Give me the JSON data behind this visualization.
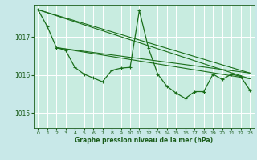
{
  "bg_color": "#c8e8e8",
  "plot_bg_color": "#c8ece0",
  "grid_color": "#ffffff",
  "line_color": "#1a6e1a",
  "text_color": "#1a5c1a",
  "xlabel": "Graphe pression niveau de la mer (hPa)",
  "ylim": [
    1014.6,
    1017.85
  ],
  "yticks": [
    1015,
    1016,
    1017
  ],
  "xticks": [
    0,
    1,
    2,
    3,
    4,
    5,
    6,
    7,
    8,
    9,
    10,
    11,
    12,
    13,
    14,
    15,
    16,
    17,
    18,
    19,
    20,
    21,
    22,
    23
  ],
  "data_series": [
    1017.72,
    1017.28,
    1016.72,
    1016.65,
    1016.2,
    1016.02,
    1015.92,
    1015.82,
    1016.12,
    1016.18,
    1016.2,
    1017.7,
    1016.7,
    1016.02,
    1015.7,
    1015.52,
    1015.38,
    1015.56,
    1015.56,
    1016.02,
    1015.88,
    1016.02,
    1015.96,
    1015.6
  ],
  "trend_lines": [
    {
      "x0": 0,
      "y0": 1017.72,
      "x1": 23,
      "y1": 1016.05
    },
    {
      "x0": 0,
      "y0": 1017.72,
      "x1": 23,
      "y1": 1015.9
    },
    {
      "x0": 2,
      "y0": 1016.72,
      "x1": 23,
      "y1": 1016.05
    },
    {
      "x0": 2,
      "y0": 1016.72,
      "x1": 23,
      "y1": 1015.9
    }
  ]
}
